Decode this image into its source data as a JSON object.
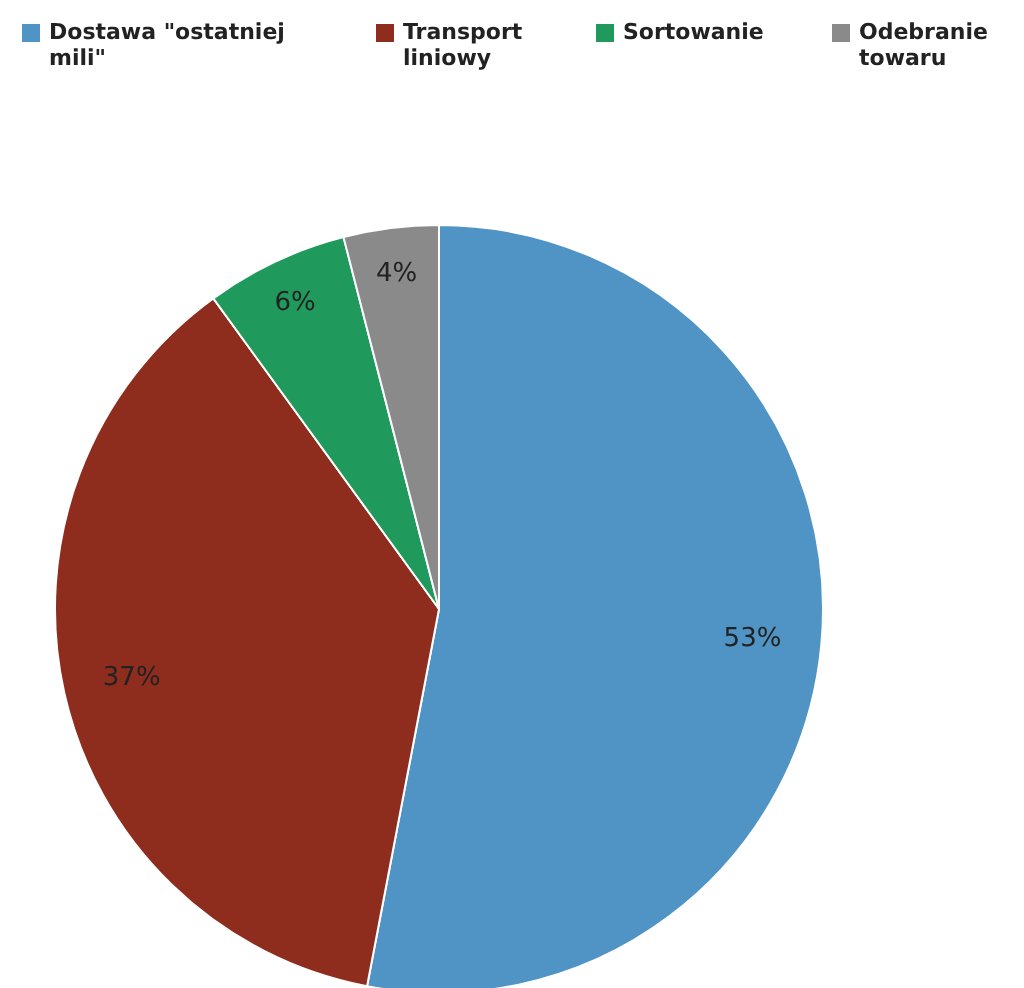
{
  "chart_data": {
    "type": "pie",
    "categories": [
      "Dostawa \"ostatniej mili\"",
      "Transport liniowy",
      "Sortowanie",
      "Odebranie towaru"
    ],
    "values": [
      53,
      37,
      6,
      4
    ],
    "colors": [
      "#4f94c4",
      "#8e2c1e",
      "#1f9a5c",
      "#8a8a8a"
    ],
    "value_labels": [
      "53%",
      "37%",
      "6%",
      "4%"
    ],
    "legend": "top"
  }
}
